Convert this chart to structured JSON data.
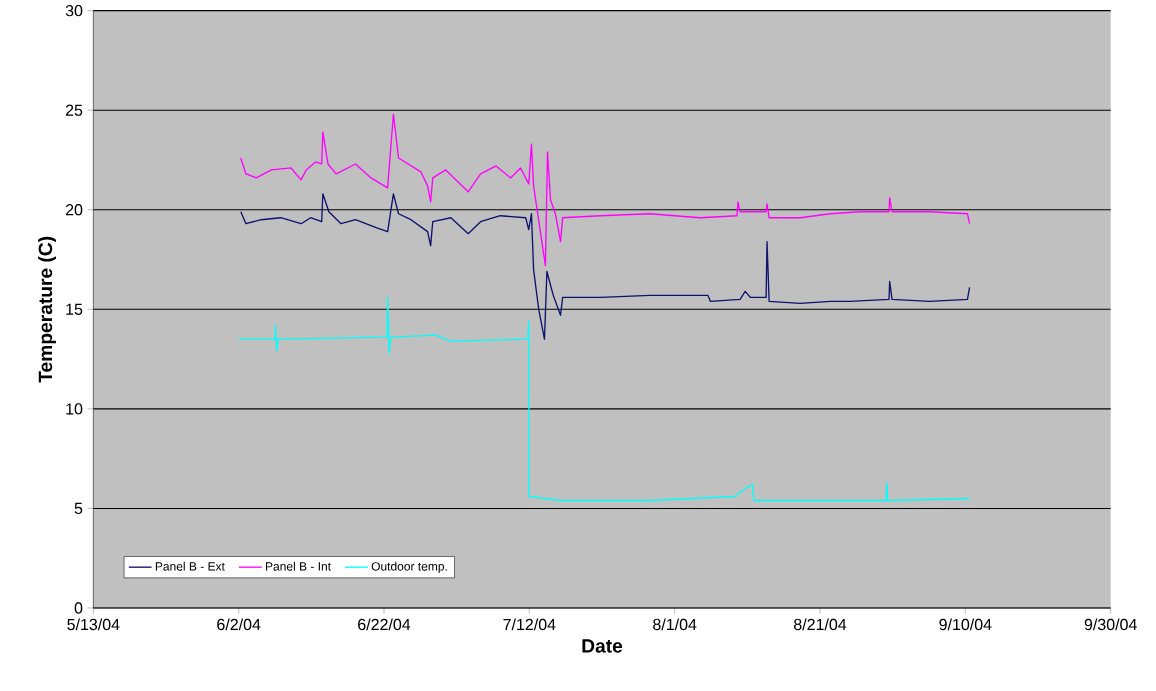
{
  "chart_data": {
    "type": "line",
    "xlabel": "Date",
    "ylabel": "Temperature (C)",
    "xlim": [
      "2004-05-13",
      "2004-09-30"
    ],
    "xticks": [
      {
        "value": "2004-05-13",
        "label": "5/13/04"
      },
      {
        "value": "2004-06-02",
        "label": "6/2/04"
      },
      {
        "value": "2004-06-22",
        "label": "6/22/04"
      },
      {
        "value": "2004-07-12",
        "label": "7/12/04"
      },
      {
        "value": "2004-08-01",
        "label": "8/1/04"
      },
      {
        "value": "2004-08-21",
        "label": "8/21/04"
      },
      {
        "value": "2004-09-10",
        "label": "9/10/04"
      },
      {
        "value": "2004-09-30",
        "label": "9/30/04"
      }
    ],
    "ylim": [
      0,
      30
    ],
    "yticks": [
      0,
      5,
      10,
      15,
      20,
      25,
      30
    ],
    "grid": "y",
    "legend": "bottom left",
    "marker": "none",
    "line_style": "solid",
    "series": [
      {
        "name": "Panel B - Ext",
        "color": "#10106e",
        "x": [
          "2004-06-02T07:00",
          "2004-06-03T00:00",
          "2004-06-05T02:00",
          "2004-06-07T19:00",
          "2004-06-10T14:00",
          "2004-06-11T22:00",
          "2004-06-13T10:00",
          "2004-06-13T14:00",
          "2004-06-14T10:00",
          "2004-06-16T02:00",
          "2004-06-18T02:00",
          "2004-06-20T22:00",
          "2004-06-22T12:00",
          "2004-06-23T07:00",
          "2004-06-24T00:00",
          "2004-06-25T17:00",
          "2004-06-28T00:00",
          "2004-06-28T10:00",
          "2004-06-28T17:00",
          "2004-07-01T05:00",
          "2004-07-03T14:00",
          "2004-07-05T07:00",
          "2004-07-08T00:00",
          "2004-07-11T12:00",
          "2004-07-11T22:00",
          "2004-07-12T07:00",
          "2004-07-12T14:00",
          "2004-07-13T07:00",
          "2004-07-14T02:00",
          "2004-07-14T10:00",
          "2004-07-15T07:00",
          "2004-07-16T07:00",
          "2004-07-16T14:00",
          "2004-07-21T19:00",
          "2004-07-28T14:00",
          "2004-08-05T14:00",
          "2004-08-05T22:00",
          "2004-08-10T00:00",
          "2004-08-10T17:00",
          "2004-08-11T10:00",
          "2004-08-13T14:00",
          "2004-08-13T17:00",
          "2004-08-14T00:00",
          "2004-08-18T07:00",
          "2004-08-22T10:00",
          "2004-08-25T02:00",
          "2004-08-30T12:00",
          "2004-08-30T14:00",
          "2004-08-30T22:00",
          "2004-09-05T02:00",
          "2004-09-10T07:00",
          "2004-09-10T14:00"
        ],
        "values": [
          19.9,
          19.3,
          19.5,
          19.6,
          19.3,
          19.6,
          19.4,
          20.8,
          19.9,
          19.3,
          19.5,
          19.1,
          18.9,
          20.8,
          19.8,
          19.5,
          18.9,
          18.2,
          19.4,
          19.6,
          18.8,
          19.4,
          19.7,
          19.6,
          19.0,
          19.8,
          17.0,
          15.0,
          13.5,
          16.9,
          15.7,
          14.7,
          15.6,
          15.6,
          15.7,
          15.7,
          15.4,
          15.5,
          15.9,
          15.6,
          15.6,
          18.4,
          15.4,
          15.3,
          15.4,
          15.4,
          15.5,
          16.4,
          15.5,
          15.4,
          15.5,
          16.1
        ]
      },
      {
        "name": "Panel B - Int",
        "color": "#ff00ff",
        "x": [
          "2004-06-02T07:00",
          "2004-06-03T00:00",
          "2004-06-04T10:00",
          "2004-06-06T12:00",
          "2004-06-09T05:00",
          "2004-06-10T14:00",
          "2004-06-11T07:00",
          "2004-06-12T14:00",
          "2004-06-13T10:00",
          "2004-06-13T14:00",
          "2004-06-14T07:00",
          "2004-06-15T10:00",
          "2004-06-18T02:00",
          "2004-06-20T05:00",
          "2004-06-22T12:00",
          "2004-06-23T07:00",
          "2004-06-24T00:00",
          "2004-06-27T02:00",
          "2004-06-28T00:00",
          "2004-06-28T10:00",
          "2004-06-28T17:00",
          "2004-06-30T12:00",
          "2004-07-03T14:00",
          "2004-07-05T07:00",
          "2004-07-07T10:00",
          "2004-07-09T10:00",
          "2004-07-10T19:00",
          "2004-07-11T22:00",
          "2004-07-12T07:00",
          "2004-07-12T14:00",
          "2004-07-14T05:00",
          "2004-07-14T12:00",
          "2004-07-14T22:00",
          "2004-07-15T14:00",
          "2004-07-16T07:00",
          "2004-07-16T14:00",
          "2004-07-21T19:00",
          "2004-07-28T14:00",
          "2004-08-04T12:00",
          "2004-08-09T14:00",
          "2004-08-09T17:00",
          "2004-08-10T00:00",
          "2004-08-13T14:00",
          "2004-08-13T17:00",
          "2004-08-14T00:00",
          "2004-08-18T07:00",
          "2004-08-22T10:00",
          "2004-08-26T12:00",
          "2004-08-30T12:00",
          "2004-08-30T14:00",
          "2004-08-30T22:00",
          "2004-09-05T02:00",
          "2004-09-10T07:00",
          "2004-09-10T14:00"
        ],
        "values": [
          22.6,
          21.8,
          21.6,
          22.0,
          22.1,
          21.5,
          22.0,
          22.4,
          22.3,
          23.9,
          22.3,
          21.8,
          22.3,
          21.6,
          21.1,
          24.8,
          22.6,
          21.9,
          21.2,
          20.4,
          21.6,
          22.0,
          20.9,
          21.8,
          22.2,
          21.6,
          22.1,
          21.3,
          23.3,
          21.2,
          17.2,
          22.9,
          20.5,
          19.8,
          18.4,
          19.6,
          19.7,
          19.8,
          19.6,
          19.7,
          20.4,
          19.9,
          19.9,
          20.3,
          19.6,
          19.6,
          19.8,
          19.9,
          19.9,
          20.6,
          19.9,
          19.9,
          19.8,
          19.3
        ]
      },
      {
        "name": "Outdoor temp.",
        "color": "#00ffff",
        "x": [
          "2004-06-02T00:00",
          "2004-06-07T00:00",
          "2004-06-07T02:00",
          "2004-06-07T05:00",
          "2004-06-07T10:00",
          "2004-06-22T10:00",
          "2004-06-22T12:00",
          "2004-06-22T17:00",
          "2004-06-22T22:00",
          "2004-06-29T02:00",
          "2004-07-01T05:00",
          "2004-07-11T19:00",
          "2004-07-11T22:00",
          "2004-07-12T00:00",
          "2004-07-16T07:00",
          "2004-07-28T14:00",
          "2004-08-09T07:00",
          "2004-08-10T17:00",
          "2004-08-11T17:00",
          "2004-08-11T22:00",
          "2004-08-30T02:00",
          "2004-08-30T05:00",
          "2004-08-30T07:00",
          "2004-09-10T14:00"
        ],
        "values": [
          13.5,
          13.5,
          14.2,
          12.9,
          13.5,
          13.6,
          15.6,
          12.8,
          13.6,
          13.7,
          13.4,
          13.5,
          14.4,
          5.6,
          5.4,
          5.4,
          5.6,
          6.0,
          6.2,
          5.4,
          5.4,
          6.3,
          5.4,
          5.5
        ]
      }
    ]
  }
}
